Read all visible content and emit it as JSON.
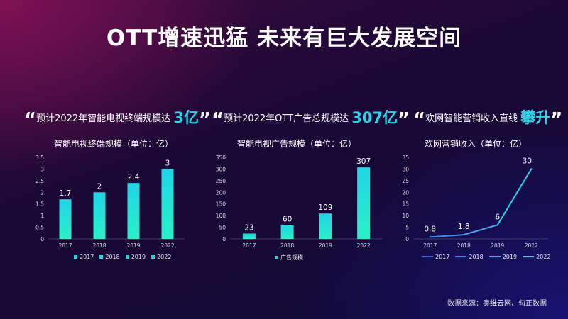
{
  "title": "OTT增速迅猛  未来有巨大发展空间",
  "source": "数据来源：奥维云网、勾正数据",
  "quotes": [
    {
      "open": "“",
      "text": "预计2022年智能电视终端规模达",
      "highlight": "3亿",
      "close": "”"
    },
    {
      "open": "“",
      "text": "预计2022年OTT广告总规模达",
      "highlight": "307亿",
      "close": "”"
    },
    {
      "open": "“",
      "text": "欢网智能营销收入直线",
      "highlight": "攀升",
      "close": "”"
    }
  ],
  "colors": {
    "accent": "#27d7e8",
    "bar_top": "#22d3e6",
    "bar_bottom": "#2af0c8"
  },
  "chart_data": [
    {
      "type": "bar",
      "title": "智能电视终端规模（单位：亿）",
      "categories": [
        "2017",
        "2018",
        "2019",
        "2022"
      ],
      "values": [
        1.7,
        2,
        2.4,
        3
      ],
      "data_labels": [
        "1.7",
        "2",
        "2.4",
        "3"
      ],
      "ylim": [
        0,
        3.5
      ],
      "yticks": [
        "0",
        "0.5",
        "1",
        "1.5",
        "2",
        "2.5",
        "3",
        "3.5"
      ],
      "legend": [
        "2017",
        "2018",
        "2019",
        "2022"
      ]
    },
    {
      "type": "bar",
      "title": "智能电视广告规模（单位：亿）",
      "categories": [
        "2017",
        "2018",
        "2019",
        "2022"
      ],
      "values": [
        23,
        60,
        109,
        307
      ],
      "data_labels": [
        "23",
        "60",
        "109",
        "307"
      ],
      "ylim": [
        0,
        350
      ],
      "yticks": [
        "0",
        "50",
        "100",
        "150",
        "200",
        "250",
        "300",
        "350"
      ],
      "legend": [
        "广告规模"
      ]
    },
    {
      "type": "line",
      "title": "欢网营销收入（单位：亿）",
      "categories": [
        "2017",
        "2018",
        "2019",
        "2022"
      ],
      "values": [
        0.8,
        1.8,
        6,
        30
      ],
      "data_labels": [
        "0.8",
        "1.8",
        "6",
        "30"
      ],
      "ylim": [
        0,
        35
      ],
      "yticks": [
        "0",
        "5",
        "10",
        "15",
        "20",
        "25",
        "30",
        "35"
      ],
      "legend": [
        "2017",
        "2018",
        "2019",
        "2022"
      ]
    }
  ]
}
